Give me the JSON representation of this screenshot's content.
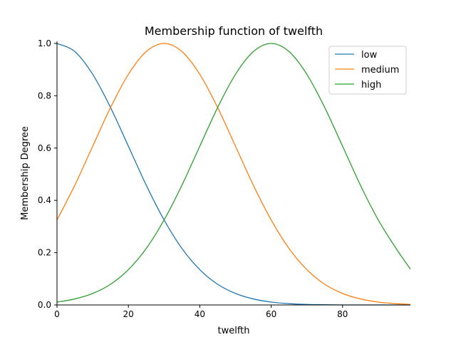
{
  "chart_data": {
    "type": "line",
    "title": "Membership function of twelfth",
    "xlabel": "twelfth",
    "ylabel": "Membership Degree",
    "xlim": [
      0,
      99
    ],
    "ylim": [
      0,
      1.0
    ],
    "x_ticks": [
      0,
      20,
      40,
      60,
      80
    ],
    "y_ticks": [
      0.0,
      0.2,
      0.4,
      0.6,
      0.8,
      1.0
    ],
    "x_tick_labels": [
      "0",
      "20",
      "40",
      "60",
      "80"
    ],
    "y_tick_labels": [
      "0.0",
      "0.2",
      "0.4",
      "0.6",
      "0.8",
      "1.0"
    ],
    "grid": false,
    "legend_position": "top-right",
    "x": [
      0,
      5,
      10,
      15,
      20,
      25,
      30,
      35,
      40,
      45,
      50,
      55,
      60,
      65,
      70,
      75,
      80,
      85,
      90,
      95,
      99
    ],
    "series": [
      {
        "name": "low",
        "color": "#1f77b4",
        "values": [
          1.0,
          0.969,
          0.882,
          0.755,
          0.607,
          0.458,
          0.325,
          0.216,
          0.135,
          0.079,
          0.044,
          0.023,
          0.011,
          0.005,
          0.002,
          0.001,
          0.0,
          0.0,
          0.0,
          0.0,
          0.0
        ]
      },
      {
        "name": "medium",
        "color": "#ff7f0e",
        "values": [
          0.325,
          0.458,
          0.607,
          0.755,
          0.882,
          0.969,
          1.0,
          0.969,
          0.882,
          0.755,
          0.607,
          0.458,
          0.325,
          0.216,
          0.135,
          0.079,
          0.044,
          0.023,
          0.011,
          0.005,
          0.002
        ]
      },
      {
        "name": "high",
        "color": "#2ca02c",
        "values": [
          0.011,
          0.023,
          0.044,
          0.079,
          0.135,
          0.216,
          0.325,
          0.458,
          0.607,
          0.755,
          0.882,
          0.969,
          1.0,
          0.969,
          0.882,
          0.755,
          0.607,
          0.458,
          0.325,
          0.216,
          0.137
        ]
      }
    ]
  }
}
